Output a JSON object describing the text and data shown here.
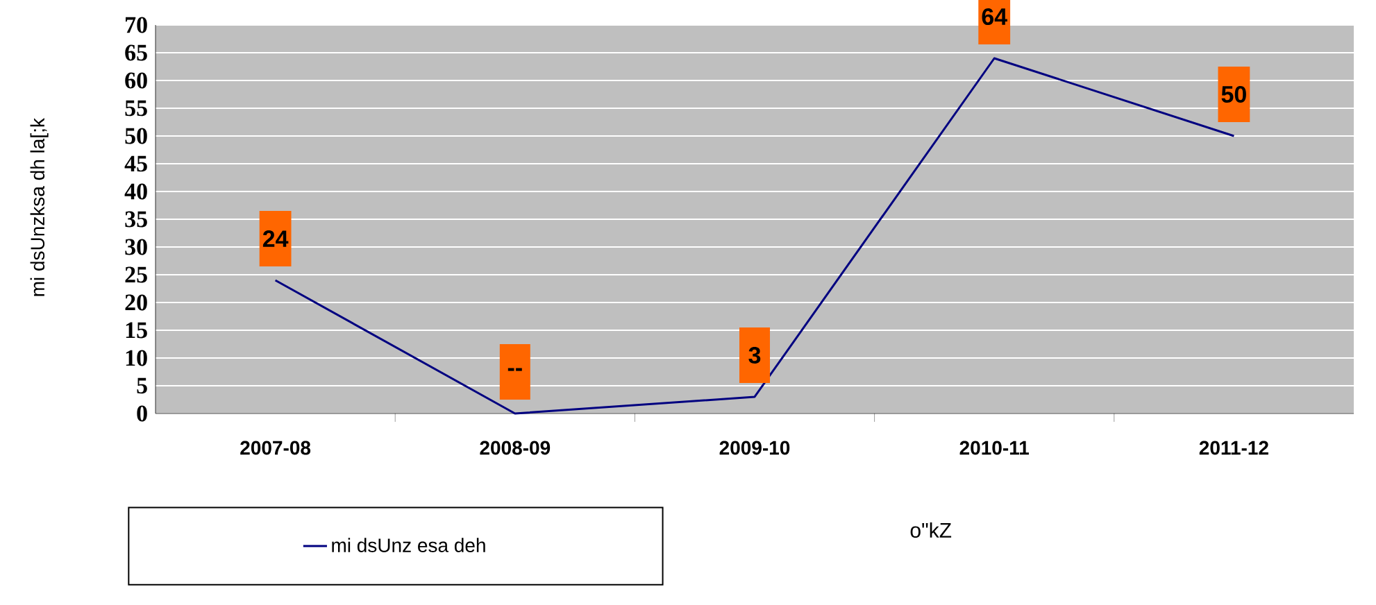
{
  "chart_data": {
    "type": "line",
    "xlabel": "o\"kZ",
    "ylabel": "mi dsUnzksa dh la[;k",
    "categories": [
      "2007-08",
      "2008-09",
      "2009-10",
      "2010-11",
      "2011-12"
    ],
    "series": [
      {
        "name": "mi dsUnz esa deh",
        "color": "#000080",
        "values": [
          24,
          0,
          3,
          64,
          50
        ],
        "value_labels": [
          "24",
          "--",
          "3",
          "64",
          "50"
        ]
      }
    ],
    "ylim": [
      0,
      70
    ],
    "yticks": [
      0,
      5,
      10,
      15,
      20,
      25,
      30,
      35,
      40,
      45,
      50,
      55,
      60,
      65,
      70
    ],
    "grid": "y",
    "legend": "bottom left"
  }
}
